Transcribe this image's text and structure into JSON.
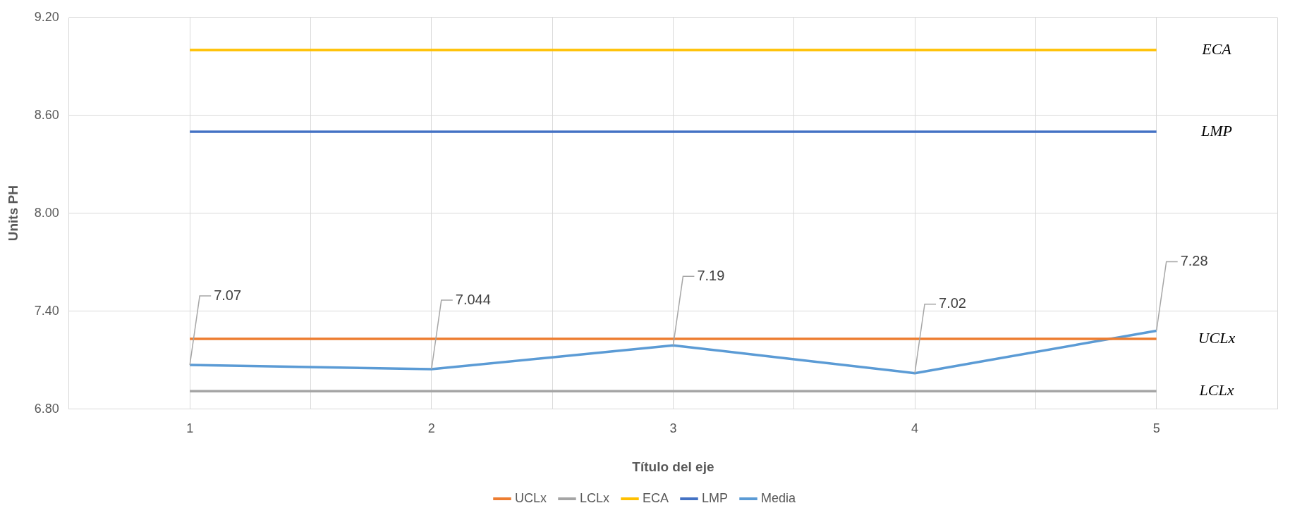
{
  "chart_data": {
    "type": "line",
    "xlabel": "Título del eje",
    "ylabel": "Units PH",
    "x": [
      1,
      2,
      3,
      4,
      5
    ],
    "xlim": [
      0.5,
      5.5
    ],
    "xticks": [
      {
        "value": 0.5,
        "label": null
      },
      1,
      {
        "value": 1.5,
        "label": null
      },
      2,
      {
        "value": 2.5,
        "label": null
      },
      3,
      {
        "value": 3.5,
        "label": null
      },
      4,
      {
        "value": 4.5,
        "label": null
      },
      5,
      {
        "value": 5.5,
        "label": null
      }
    ],
    "ylim": [
      6.8,
      9.2
    ],
    "yticks": [
      {
        "value": 6.8,
        "label": "6.80"
      },
      {
        "value": 7.4,
        "label": "7.40"
      },
      {
        "value": 8.0,
        "label": "8.00"
      },
      {
        "value": 8.6,
        "label": "8.60"
      },
      {
        "value": 9.2,
        "label": "9.20"
      }
    ],
    "series": [
      {
        "name": "UCLx",
        "color": "#ed7d31",
        "values": [
          7.23,
          7.23,
          7.23,
          7.23,
          7.23
        ]
      },
      {
        "name": "LCLx",
        "color": "#a5a5a5",
        "values": [
          6.91,
          6.91,
          6.91,
          6.91,
          6.91
        ]
      },
      {
        "name": "ECA",
        "color": "#ffc000",
        "values": [
          9.0,
          9.0,
          9.0,
          9.0,
          9.0
        ]
      },
      {
        "name": "LMP",
        "color": "#4472c4",
        "values": [
          8.5,
          8.5,
          8.5,
          8.5,
          8.5
        ]
      },
      {
        "name": "Media",
        "color": "#5b9bd5",
        "values": [
          7.07,
          7.044,
          7.19,
          7.02,
          7.28
        ],
        "value_labels": [
          "7.07",
          "7.044",
          "7.19",
          "7.02",
          "7.28"
        ]
      }
    ],
    "annotations": [
      "ECA",
      "LMP",
      "UCLx",
      "LCLx"
    ],
    "grid": true,
    "legend": "bottom",
    "marker": "none",
    "line_style": "solid"
  }
}
